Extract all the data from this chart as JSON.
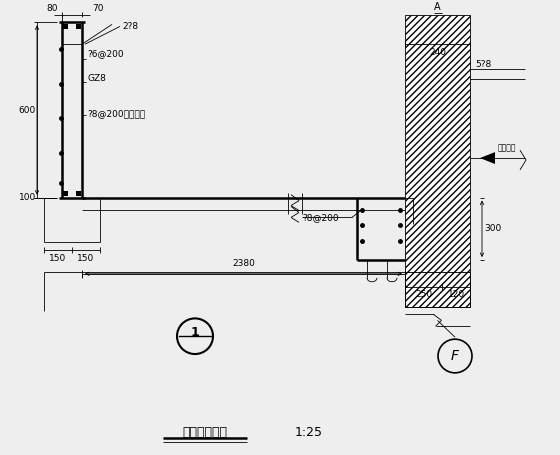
{
  "title": "雨篷栏板做法",
  "scale": "1:25",
  "bg_color": "#eeeeee",
  "line_color": "#000000",
  "annotations": {
    "dim_80": "80",
    "dim_70": "70",
    "dim_2p8": "2?8",
    "dim_p6_200": "?6@200",
    "dim_gz8": "GZ8",
    "dim_p8_200_left": "?8@200截筋锚乾",
    "dim_600": "600",
    "dim_100": "100",
    "dim_150a": "150",
    "dim_150b": "150",
    "dim_240": "240",
    "dim_5p8": "5?8",
    "dim_p8_200_right": "?8@200",
    "dim_300": "300",
    "dim_250": "250",
    "dim_120": "120",
    "dim_2380": "2380",
    "dim_label_right": "装层标高",
    "circle_1": "1",
    "circle_f": "F",
    "label_a": "A"
  }
}
